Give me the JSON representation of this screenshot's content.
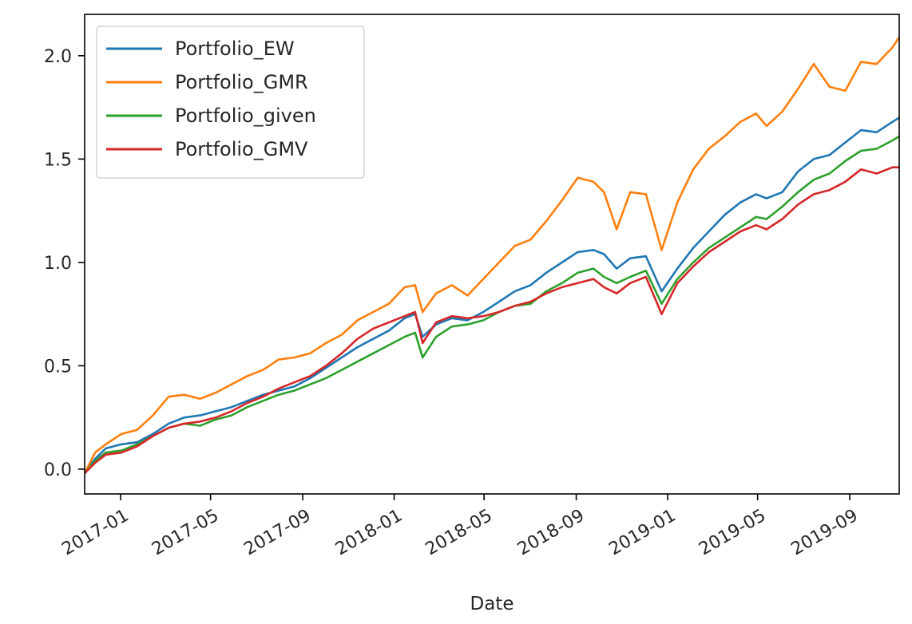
{
  "chart_data": {
    "type": "line",
    "title": "",
    "xlabel": "Date",
    "ylabel": "",
    "x_axis_type": "date",
    "xlim": [
      "2016-11-14",
      "2019-11-06"
    ],
    "ylim": [
      -0.12,
      2.2
    ],
    "x_ticks": [
      {
        "date": "2017-01-01",
        "label": "2017-01"
      },
      {
        "date": "2017-05-01",
        "label": "2017-05"
      },
      {
        "date": "2017-09-01",
        "label": "2017-09"
      },
      {
        "date": "2018-01-01",
        "label": "2018-01"
      },
      {
        "date": "2018-05-01",
        "label": "2018-05"
      },
      {
        "date": "2018-09-01",
        "label": "2018-09"
      },
      {
        "date": "2019-01-01",
        "label": "2019-01"
      },
      {
        "date": "2019-05-01",
        "label": "2019-05"
      },
      {
        "date": "2019-09-01",
        "label": "2019-09"
      }
    ],
    "y_ticks": [
      {
        "value": 0.0,
        "label": "0.0"
      },
      {
        "value": 0.5,
        "label": "0.5"
      },
      {
        "value": 1.0,
        "label": "1.0"
      },
      {
        "value": 1.5,
        "label": "1.5"
      },
      {
        "value": 2.0,
        "label": "2.0"
      }
    ],
    "grid": false,
    "legend_position": "top-left",
    "series": [
      {
        "name": "Portfolio_EW",
        "color": "#1f77b4",
        "points": [
          [
            "2016-11-14",
            -0.02
          ],
          [
            "2016-11-28",
            0.05
          ],
          [
            "2016-12-12",
            0.1
          ],
          [
            "2017-01-02",
            0.12
          ],
          [
            "2017-01-23",
            0.13
          ],
          [
            "2017-02-13",
            0.17
          ],
          [
            "2017-03-06",
            0.22
          ],
          [
            "2017-03-27",
            0.25
          ],
          [
            "2017-04-17",
            0.26
          ],
          [
            "2017-05-08",
            0.28
          ],
          [
            "2017-05-29",
            0.3
          ],
          [
            "2017-06-19",
            0.33
          ],
          [
            "2017-07-10",
            0.36
          ],
          [
            "2017-07-31",
            0.38
          ],
          [
            "2017-08-21",
            0.4
          ],
          [
            "2017-09-11",
            0.44
          ],
          [
            "2017-10-02",
            0.49
          ],
          [
            "2017-10-23",
            0.54
          ],
          [
            "2017-11-13",
            0.59
          ],
          [
            "2017-12-04",
            0.63
          ],
          [
            "2017-12-25",
            0.67
          ],
          [
            "2018-01-15",
            0.73
          ],
          [
            "2018-01-29",
            0.75
          ],
          [
            "2018-02-08",
            0.64
          ],
          [
            "2018-02-26",
            0.7
          ],
          [
            "2018-03-19",
            0.73
          ],
          [
            "2018-04-09",
            0.72
          ],
          [
            "2018-04-30",
            0.76
          ],
          [
            "2018-05-21",
            0.81
          ],
          [
            "2018-06-11",
            0.86
          ],
          [
            "2018-07-02",
            0.89
          ],
          [
            "2018-07-23",
            0.95
          ],
          [
            "2018-08-13",
            1.0
          ],
          [
            "2018-09-03",
            1.05
          ],
          [
            "2018-09-24",
            1.06
          ],
          [
            "2018-10-08",
            1.04
          ],
          [
            "2018-10-25",
            0.97
          ],
          [
            "2018-11-12",
            1.02
          ],
          [
            "2018-12-03",
            1.03
          ],
          [
            "2018-12-24",
            0.86
          ],
          [
            "2019-01-14",
            0.97
          ],
          [
            "2019-02-04",
            1.07
          ],
          [
            "2019-02-25",
            1.15
          ],
          [
            "2019-03-18",
            1.23
          ],
          [
            "2019-04-08",
            1.29
          ],
          [
            "2019-04-29",
            1.33
          ],
          [
            "2019-05-13",
            1.31
          ],
          [
            "2019-06-03",
            1.34
          ],
          [
            "2019-06-24",
            1.44
          ],
          [
            "2019-07-15",
            1.5
          ],
          [
            "2019-08-05",
            1.52
          ],
          [
            "2019-08-26",
            1.58
          ],
          [
            "2019-09-16",
            1.64
          ],
          [
            "2019-10-07",
            1.63
          ],
          [
            "2019-10-28",
            1.68
          ],
          [
            "2019-11-06",
            1.7
          ]
        ]
      },
      {
        "name": "Portfolio_GMR",
        "color": "#ff7f0e",
        "points": [
          [
            "2016-11-14",
            -0.02
          ],
          [
            "2016-11-28",
            0.08
          ],
          [
            "2016-12-12",
            0.12
          ],
          [
            "2017-01-02",
            0.17
          ],
          [
            "2017-01-23",
            0.19
          ],
          [
            "2017-02-13",
            0.26
          ],
          [
            "2017-03-06",
            0.35
          ],
          [
            "2017-03-27",
            0.36
          ],
          [
            "2017-04-17",
            0.34
          ],
          [
            "2017-05-08",
            0.37
          ],
          [
            "2017-05-29",
            0.41
          ],
          [
            "2017-06-19",
            0.45
          ],
          [
            "2017-07-10",
            0.48
          ],
          [
            "2017-07-31",
            0.53
          ],
          [
            "2017-08-21",
            0.54
          ],
          [
            "2017-09-11",
            0.56
          ],
          [
            "2017-10-02",
            0.61
          ],
          [
            "2017-10-23",
            0.65
          ],
          [
            "2017-11-13",
            0.72
          ],
          [
            "2017-12-04",
            0.76
          ],
          [
            "2017-12-25",
            0.8
          ],
          [
            "2018-01-15",
            0.88
          ],
          [
            "2018-01-29",
            0.89
          ],
          [
            "2018-02-08",
            0.76
          ],
          [
            "2018-02-26",
            0.85
          ],
          [
            "2018-03-19",
            0.89
          ],
          [
            "2018-04-09",
            0.84
          ],
          [
            "2018-04-30",
            0.92
          ],
          [
            "2018-05-21",
            1.0
          ],
          [
            "2018-06-11",
            1.08
          ],
          [
            "2018-07-02",
            1.11
          ],
          [
            "2018-07-23",
            1.2
          ],
          [
            "2018-08-13",
            1.3
          ],
          [
            "2018-09-03",
            1.41
          ],
          [
            "2018-09-24",
            1.39
          ],
          [
            "2018-10-08",
            1.34
          ],
          [
            "2018-10-25",
            1.16
          ],
          [
            "2018-11-12",
            1.34
          ],
          [
            "2018-12-03",
            1.33
          ],
          [
            "2018-12-24",
            1.06
          ],
          [
            "2019-01-14",
            1.29
          ],
          [
            "2019-02-04",
            1.45
          ],
          [
            "2019-02-25",
            1.55
          ],
          [
            "2019-03-18",
            1.61
          ],
          [
            "2019-04-08",
            1.68
          ],
          [
            "2019-04-29",
            1.72
          ],
          [
            "2019-05-13",
            1.66
          ],
          [
            "2019-06-03",
            1.73
          ],
          [
            "2019-06-24",
            1.84
          ],
          [
            "2019-07-15",
            1.96
          ],
          [
            "2019-08-05",
            1.85
          ],
          [
            "2019-08-26",
            1.83
          ],
          [
            "2019-09-16",
            1.97
          ],
          [
            "2019-10-07",
            1.96
          ],
          [
            "2019-10-28",
            2.04
          ],
          [
            "2019-11-06",
            2.09
          ]
        ]
      },
      {
        "name": "Portfolio_given",
        "color": "#2ca02c",
        "points": [
          [
            "2016-11-14",
            -0.02
          ],
          [
            "2016-11-28",
            0.04
          ],
          [
            "2016-12-12",
            0.08
          ],
          [
            "2017-01-02",
            0.09
          ],
          [
            "2017-01-23",
            0.12
          ],
          [
            "2017-02-13",
            0.16
          ],
          [
            "2017-03-06",
            0.2
          ],
          [
            "2017-03-27",
            0.22
          ],
          [
            "2017-04-17",
            0.21
          ],
          [
            "2017-05-08",
            0.24
          ],
          [
            "2017-05-29",
            0.26
          ],
          [
            "2017-06-19",
            0.3
          ],
          [
            "2017-07-10",
            0.33
          ],
          [
            "2017-07-31",
            0.36
          ],
          [
            "2017-08-21",
            0.38
          ],
          [
            "2017-09-11",
            0.41
          ],
          [
            "2017-10-02",
            0.44
          ],
          [
            "2017-10-23",
            0.48
          ],
          [
            "2017-11-13",
            0.52
          ],
          [
            "2017-12-04",
            0.56
          ],
          [
            "2017-12-25",
            0.6
          ],
          [
            "2018-01-15",
            0.64
          ],
          [
            "2018-01-29",
            0.66
          ],
          [
            "2018-02-08",
            0.54
          ],
          [
            "2018-02-26",
            0.64
          ],
          [
            "2018-03-19",
            0.69
          ],
          [
            "2018-04-09",
            0.7
          ],
          [
            "2018-04-30",
            0.72
          ],
          [
            "2018-05-21",
            0.76
          ],
          [
            "2018-06-11",
            0.79
          ],
          [
            "2018-07-02",
            0.8
          ],
          [
            "2018-07-23",
            0.86
          ],
          [
            "2018-08-13",
            0.9
          ],
          [
            "2018-09-03",
            0.95
          ],
          [
            "2018-09-24",
            0.97
          ],
          [
            "2018-10-08",
            0.93
          ],
          [
            "2018-10-25",
            0.9
          ],
          [
            "2018-11-12",
            0.93
          ],
          [
            "2018-12-03",
            0.96
          ],
          [
            "2018-12-24",
            0.8
          ],
          [
            "2019-01-14",
            0.92
          ],
          [
            "2019-02-04",
            1.0
          ],
          [
            "2019-02-25",
            1.07
          ],
          [
            "2019-03-18",
            1.12
          ],
          [
            "2019-04-08",
            1.17
          ],
          [
            "2019-04-29",
            1.22
          ],
          [
            "2019-05-13",
            1.21
          ],
          [
            "2019-06-03",
            1.27
          ],
          [
            "2019-06-24",
            1.34
          ],
          [
            "2019-07-15",
            1.4
          ],
          [
            "2019-08-05",
            1.43
          ],
          [
            "2019-08-26",
            1.49
          ],
          [
            "2019-09-16",
            1.54
          ],
          [
            "2019-10-07",
            1.55
          ],
          [
            "2019-10-28",
            1.59
          ],
          [
            "2019-11-06",
            1.61
          ]
        ]
      },
      {
        "name": "Portfolio_GMV",
        "color": "#d62728",
        "points": [
          [
            "2016-11-14",
            -0.02
          ],
          [
            "2016-11-28",
            0.03
          ],
          [
            "2016-12-12",
            0.07
          ],
          [
            "2017-01-02",
            0.08
          ],
          [
            "2017-01-23",
            0.11
          ],
          [
            "2017-02-13",
            0.16
          ],
          [
            "2017-03-06",
            0.2
          ],
          [
            "2017-03-27",
            0.22
          ],
          [
            "2017-04-17",
            0.23
          ],
          [
            "2017-05-08",
            0.25
          ],
          [
            "2017-05-29",
            0.28
          ],
          [
            "2017-06-19",
            0.32
          ],
          [
            "2017-07-10",
            0.35
          ],
          [
            "2017-07-31",
            0.39
          ],
          [
            "2017-08-21",
            0.42
          ],
          [
            "2017-09-11",
            0.45
          ],
          [
            "2017-10-02",
            0.5
          ],
          [
            "2017-10-23",
            0.56
          ],
          [
            "2017-11-13",
            0.63
          ],
          [
            "2017-12-04",
            0.68
          ],
          [
            "2017-12-25",
            0.71
          ],
          [
            "2018-01-15",
            0.74
          ],
          [
            "2018-01-29",
            0.76
          ],
          [
            "2018-02-08",
            0.61
          ],
          [
            "2018-02-26",
            0.71
          ],
          [
            "2018-03-19",
            0.74
          ],
          [
            "2018-04-09",
            0.73
          ],
          [
            "2018-04-30",
            0.74
          ],
          [
            "2018-05-21",
            0.76
          ],
          [
            "2018-06-11",
            0.79
          ],
          [
            "2018-07-02",
            0.81
          ],
          [
            "2018-07-23",
            0.85
          ],
          [
            "2018-08-13",
            0.88
          ],
          [
            "2018-09-03",
            0.9
          ],
          [
            "2018-09-24",
            0.92
          ],
          [
            "2018-10-08",
            0.88
          ],
          [
            "2018-10-25",
            0.85
          ],
          [
            "2018-11-12",
            0.9
          ],
          [
            "2018-12-03",
            0.93
          ],
          [
            "2018-12-24",
            0.75
          ],
          [
            "2019-01-14",
            0.9
          ],
          [
            "2019-02-04",
            0.98
          ],
          [
            "2019-02-25",
            1.05
          ],
          [
            "2019-03-18",
            1.1
          ],
          [
            "2019-04-08",
            1.15
          ],
          [
            "2019-04-29",
            1.18
          ],
          [
            "2019-05-13",
            1.16
          ],
          [
            "2019-06-03",
            1.21
          ],
          [
            "2019-06-24",
            1.28
          ],
          [
            "2019-07-15",
            1.33
          ],
          [
            "2019-08-05",
            1.35
          ],
          [
            "2019-08-26",
            1.39
          ],
          [
            "2019-09-16",
            1.45
          ],
          [
            "2019-10-07",
            1.43
          ],
          [
            "2019-10-28",
            1.46
          ],
          [
            "2019-11-06",
            1.46
          ]
        ]
      }
    ]
  }
}
